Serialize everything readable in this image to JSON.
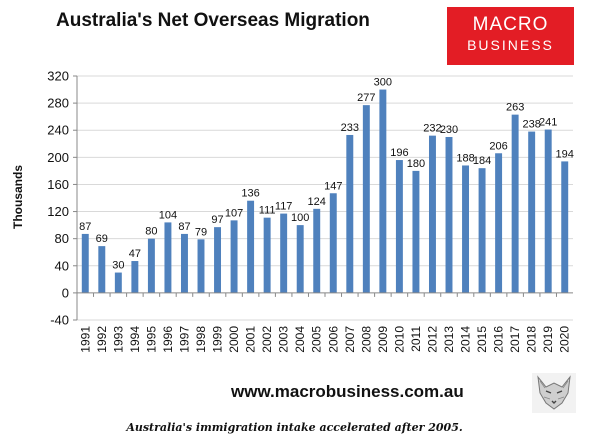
{
  "header": {
    "title": "Australia's Net Overseas Migration",
    "logo_line1": "MACRO",
    "logo_line2": "BUSINESS"
  },
  "footer": {
    "website": "www.macrobusiness.com.au",
    "logo_icon": "fox-sketch-icon",
    "caption": "Australia's immigration intake accelerated after 2005."
  },
  "colors": {
    "bar": "#4f81bd",
    "logo_bg": "#e31d25",
    "grid": "#d9d9d9"
  },
  "chart_data": {
    "type": "bar",
    "title": "Australia's Net Overseas Migration",
    "ylabel": "Thousands",
    "xlabel": "",
    "ylim": [
      -40,
      320
    ],
    "yticks": [
      -40,
      0,
      40,
      80,
      120,
      160,
      200,
      240,
      280,
      320
    ],
    "grid": true,
    "legend": "none",
    "categories": [
      "1991",
      "1992",
      "1993",
      "1994",
      "1995",
      "1996",
      "1997",
      "1998",
      "1999",
      "2000",
      "2001",
      "2002",
      "2003",
      "2004",
      "2005",
      "2006",
      "2007",
      "2008",
      "2009",
      "2010",
      "2011",
      "2012",
      "2013",
      "2014",
      "2015",
      "2016",
      "2017",
      "2018",
      "2019",
      "2020"
    ],
    "values": [
      87,
      69,
      30,
      47,
      80,
      104,
      87,
      79,
      97,
      107,
      136,
      111,
      117,
      100,
      124,
      147,
      233,
      277,
      300,
      196,
      180,
      232,
      230,
      188,
      184,
      206,
      263,
      238,
      241,
      194
    ]
  }
}
